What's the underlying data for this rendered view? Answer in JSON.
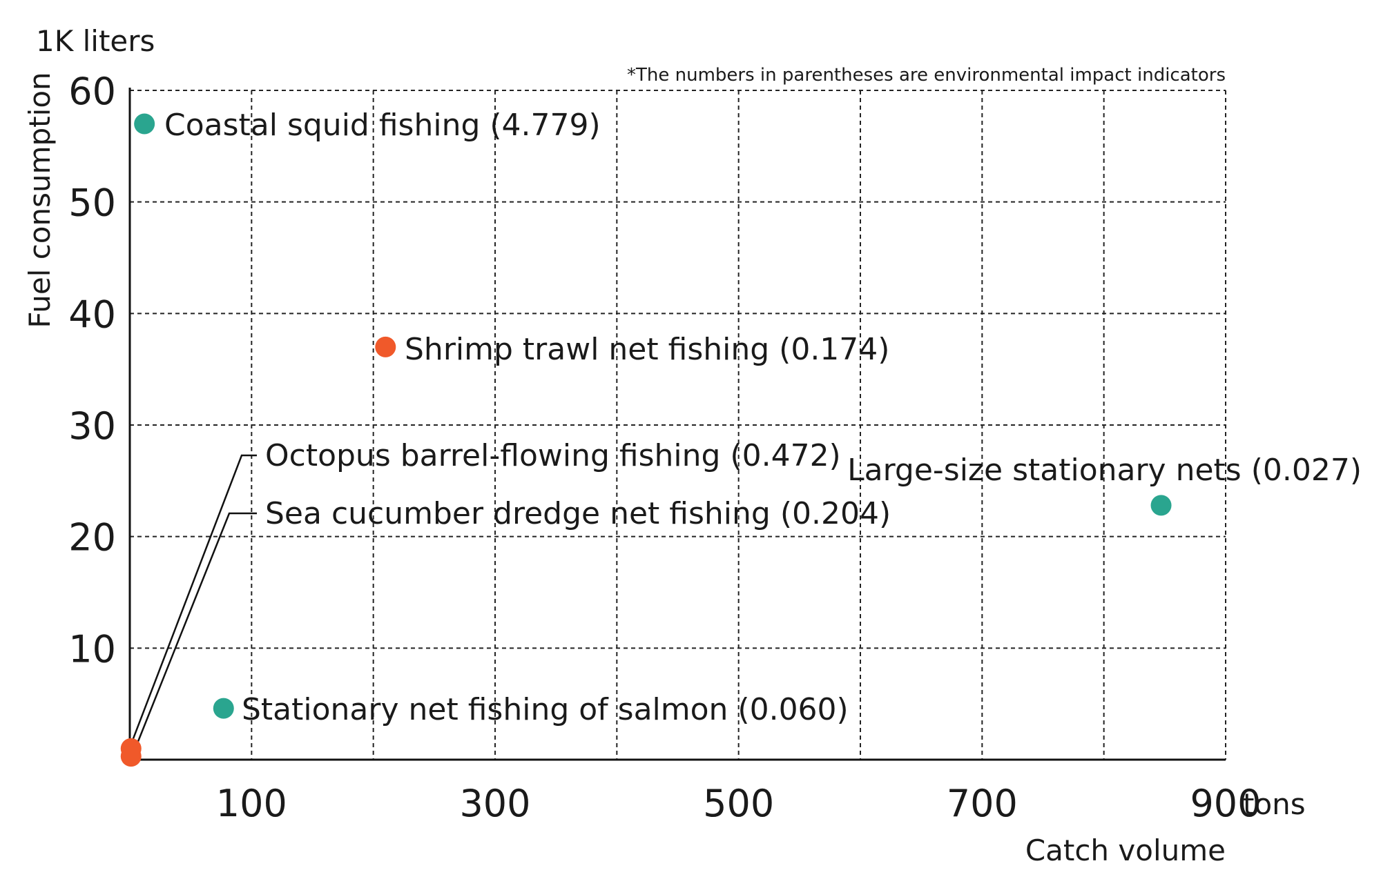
{
  "chart_data": {
    "type": "scatter",
    "y_unit": "1K liters",
    "ylabel": "Fuel consumption",
    "x_unit": "tons",
    "xlabel": "Catch volume",
    "note": "*The numbers in parentheses are environmental impact indicators",
    "xlim": [
      0,
      900
    ],
    "ylim": [
      0,
      60
    ],
    "x_gridlines": [
      100,
      200,
      300,
      400,
      500,
      600,
      700,
      800,
      900
    ],
    "y_gridlines": [
      10,
      20,
      30,
      40,
      50,
      60
    ],
    "x_tick_labels": [
      "100",
      "300",
      "500",
      "700",
      "900"
    ],
    "x_tick_values": [
      100,
      300,
      500,
      700,
      900
    ],
    "y_tick_labels": [
      "10",
      "20",
      "30",
      "40",
      "50",
      "60"
    ],
    "y_tick_values": [
      10,
      20,
      30,
      40,
      50,
      60
    ],
    "grid": true,
    "colors": {
      "teal": "#2aa58f",
      "orange": "#f0592a"
    },
    "points": [
      {
        "label": "Coastal squid fishing (4.779)",
        "x": 12,
        "y": 57,
        "color": "#2aa58f"
      },
      {
        "label": "Shrimp trawl net fishing (0.174)",
        "x": 210,
        "y": 37,
        "color": "#f0592a"
      },
      {
        "label": "Octopus barrel-flowing fishing (0.472)",
        "x": 1,
        "y": 1,
        "color": "#f0592a"
      },
      {
        "label": "Sea cucumber dredge net fishing (0.204)",
        "x": 1,
        "y": 0.3,
        "color": "#f0592a"
      },
      {
        "label": "Large-size stationary nets (0.027)",
        "x": 847,
        "y": 22.8,
        "color": "#2aa58f"
      },
      {
        "label": "Stationary net fishing of salmon (0.060)",
        "x": 77,
        "y": 4.6,
        "color": "#2aa58f"
      }
    ]
  }
}
